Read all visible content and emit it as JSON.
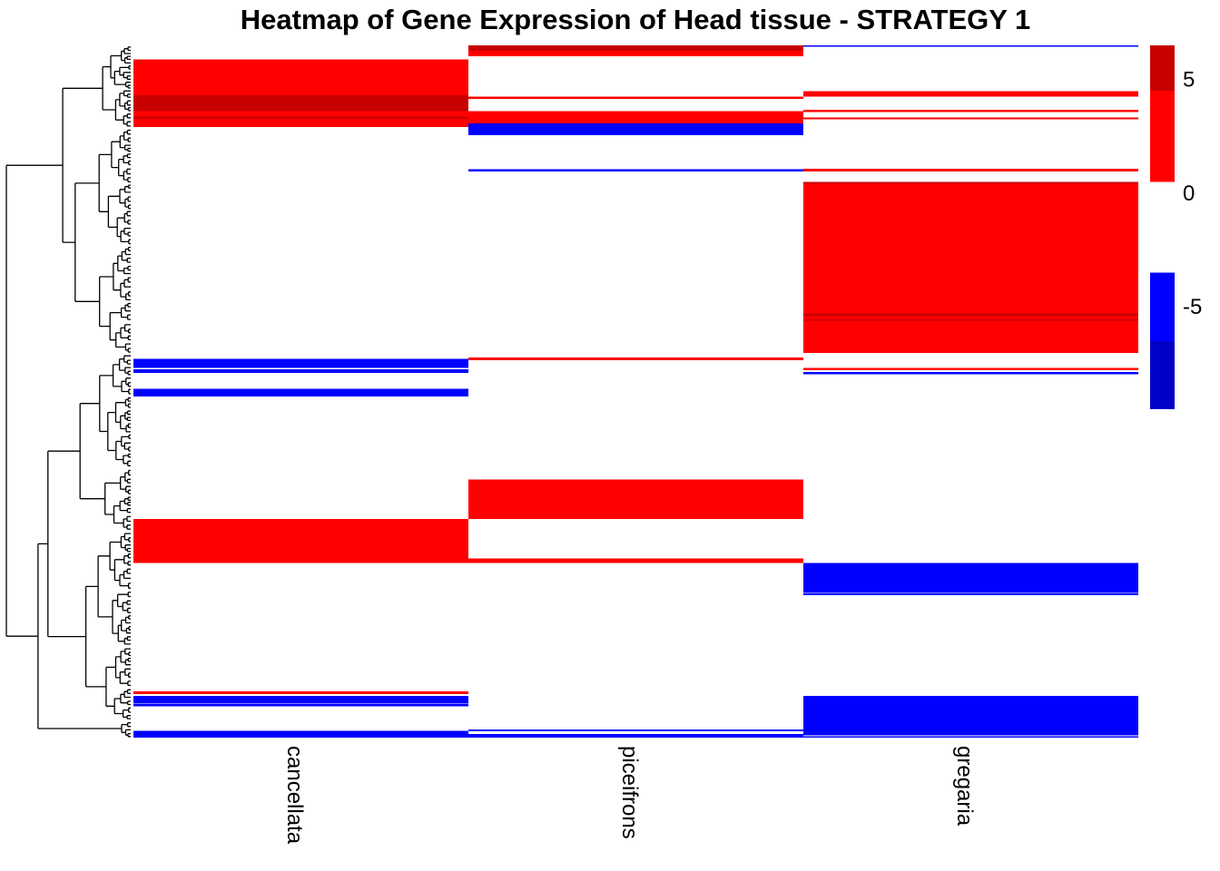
{
  "chart_data": {
    "type": "heatmap",
    "title": "Heatmap of Gene Expression of Head tissue - STRATEGY 1",
    "columns": [
      "cancellata",
      "piceifrons",
      "gregaria"
    ],
    "row_dendrogram": true,
    "colors": {
      "strong_up": "#c80000",
      "up": "#ff0000",
      "neutral": "#ffffff",
      "down": "#0000ff",
      "strong_down": "#0000c8"
    },
    "legend": {
      "ticks": [
        {
          "label": "5",
          "value": 5
        },
        {
          "label": "0",
          "value": 0
        },
        {
          "label": "-5",
          "value": -5
        }
      ],
      "bins": [
        {
          "from": 4.5,
          "to": 6.5,
          "color": "#c80000"
        },
        {
          "from": 0.5,
          "to": 4.5,
          "color": "#ff0000"
        },
        {
          "from": -3.5,
          "to": 0.5,
          "color": "#ffffff"
        },
        {
          "from": -6.5,
          "to": -3.5,
          "color": "#0000ff"
        },
        {
          "from": -9.5,
          "to": -6.5,
          "color": "#0000c8"
        }
      ],
      "range": [
        -9.5,
        6.5
      ],
      "placement": "right"
    },
    "row_count": 1000,
    "blocks": [
      {
        "column": "cancellata",
        "from": 20,
        "to": 107,
        "value": 2
      },
      {
        "column": "cancellata",
        "from": 72,
        "to": 95,
        "value": 5
      },
      {
        "column": "cancellata",
        "from": 97,
        "to": 118,
        "value": 2
      },
      {
        "column": "cancellata",
        "from": 103,
        "to": 106,
        "value": 5
      },
      {
        "column": "cancellata",
        "from": 453,
        "to": 466,
        "value": -5
      },
      {
        "column": "cancellata",
        "from": 468,
        "to": 473,
        "value": -5
      },
      {
        "column": "cancellata",
        "from": 496,
        "to": 507,
        "value": -5
      },
      {
        "column": "cancellata",
        "from": 684,
        "to": 748,
        "value": 2
      },
      {
        "column": "cancellata",
        "from": 933,
        "to": 937,
        "value": 2
      },
      {
        "column": "cancellata",
        "from": 940,
        "to": 950,
        "value": -5
      },
      {
        "column": "cancellata",
        "from": 951,
        "to": 955,
        "value": -5
      },
      {
        "column": "cancellata",
        "from": 990,
        "to": 1000,
        "value": -5
      },
      {
        "column": "piceifrons",
        "from": 0,
        "to": 8,
        "value": 5
      },
      {
        "column": "piceifrons",
        "from": 8,
        "to": 16,
        "value": 2
      },
      {
        "column": "piceifrons",
        "from": 74,
        "to": 77,
        "value": 2
      },
      {
        "column": "piceifrons",
        "from": 95,
        "to": 113,
        "value": 2
      },
      {
        "column": "piceifrons",
        "from": 113,
        "to": 130,
        "value": -5
      },
      {
        "column": "piceifrons",
        "from": 179,
        "to": 182,
        "value": -5
      },
      {
        "column": "piceifrons",
        "from": 451,
        "to": 455,
        "value": 2
      },
      {
        "column": "piceifrons",
        "from": 627,
        "to": 684,
        "value": 2
      },
      {
        "column": "piceifrons",
        "from": 741,
        "to": 748,
        "value": 2
      },
      {
        "column": "piceifrons",
        "from": 988,
        "to": 991,
        "value": -5
      },
      {
        "column": "piceifrons",
        "from": 995,
        "to": 1000,
        "value": -5
      },
      {
        "column": "gregaria",
        "from": 0,
        "to": 2,
        "value": -5
      },
      {
        "column": "gregaria",
        "from": 66,
        "to": 74,
        "value": 2
      },
      {
        "column": "gregaria",
        "from": 93,
        "to": 96,
        "value": 2
      },
      {
        "column": "gregaria",
        "from": 104,
        "to": 107,
        "value": 2
      },
      {
        "column": "gregaria",
        "from": 178,
        "to": 182,
        "value": 2
      },
      {
        "column": "gregaria",
        "from": 197,
        "to": 200,
        "value": 5
      },
      {
        "column": "gregaria",
        "from": 200,
        "to": 444,
        "value": 2
      },
      {
        "column": "gregaria",
        "from": 387,
        "to": 391,
        "value": 5
      },
      {
        "column": "gregaria",
        "from": 396,
        "to": 398,
        "value": 5
      },
      {
        "column": "gregaria",
        "from": 466,
        "to": 469,
        "value": 2
      },
      {
        "column": "gregaria",
        "from": 472,
        "to": 475,
        "value": -5
      },
      {
        "column": "gregaria",
        "from": 748,
        "to": 790,
        "value": -5
      },
      {
        "column": "gregaria",
        "from": 791,
        "to": 794,
        "value": -5
      },
      {
        "column": "gregaria",
        "from": 940,
        "to": 997,
        "value": -5
      },
      {
        "column": "gregaria",
        "from": 998,
        "to": 1000,
        "value": -5
      }
    ]
  }
}
